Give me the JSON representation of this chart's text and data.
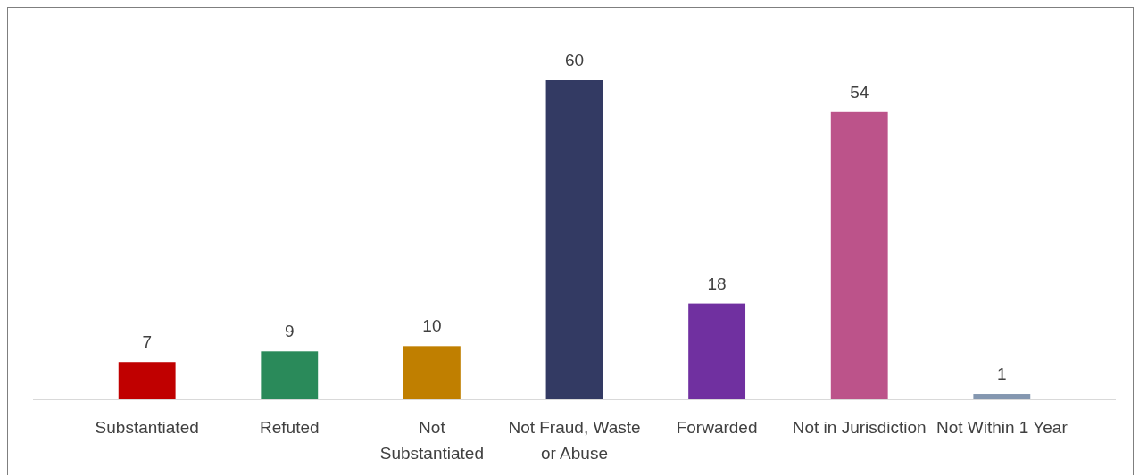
{
  "chart_data": {
    "type": "bar",
    "categories": [
      "Substantiated",
      "Refuted",
      "Not Substantiated",
      "Not Fraud, Waste or Abuse",
      "Forwarded",
      "Not in Jurisdiction",
      "Not Within 1 Year"
    ],
    "values": [
      7,
      9,
      10,
      60,
      18,
      54,
      1
    ],
    "colors": [
      "#c00000",
      "#2a8a5a",
      "#c07f00",
      "#333a63",
      "#7030a0",
      "#bc538a",
      "#8497b0"
    ],
    "data_labels": true
  }
}
